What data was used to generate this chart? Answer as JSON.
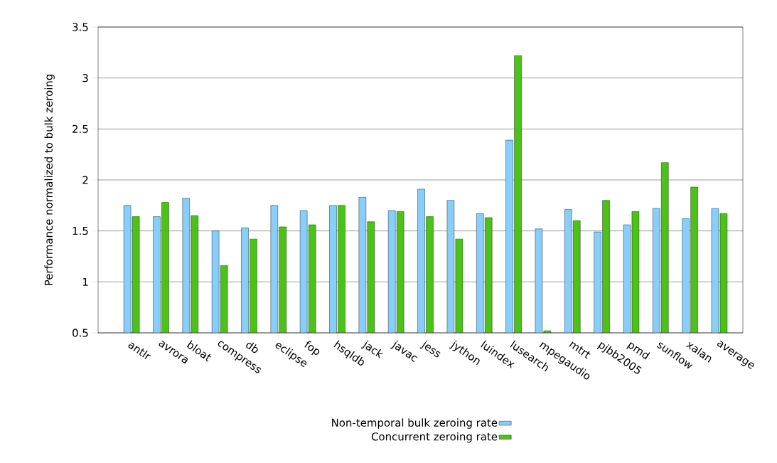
{
  "chart_data": {
    "type": "bar",
    "ylabel": "Performance normalized to bulk zeroing",
    "categories": [
      "antlr",
      "avrora",
      "bloat",
      "compress",
      "db",
      "eclipse",
      "fop",
      "hsqldb",
      "jack",
      "javac",
      "jess",
      "jython",
      "luindex",
      "lusearch",
      "mpegaudio",
      "mtrt",
      "pjbb2005",
      "pmd",
      "sunflow",
      "xalan",
      "average"
    ],
    "series": [
      {
        "name": "Non-temporal bulk zeroing rate",
        "color": "#87cefa",
        "values": [
          1.75,
          1.64,
          1.82,
          1.5,
          1.53,
          1.75,
          1.7,
          1.75,
          1.83,
          1.7,
          1.91,
          1.8,
          1.67,
          2.39,
          1.52,
          1.71,
          1.49,
          1.56,
          1.72,
          1.62,
          1.72
        ]
      },
      {
        "name": "Concurrent zeroing rate",
        "color": "#4cc219",
        "values": [
          1.64,
          1.78,
          1.65,
          1.16,
          1.42,
          1.54,
          1.56,
          1.75,
          1.59,
          1.69,
          1.64,
          1.42,
          1.63,
          3.22,
          0.52,
          1.6,
          1.8,
          1.69,
          2.17,
          1.93,
          1.67
        ]
      }
    ],
    "ylim": [
      0.5,
      3.5
    ],
    "yticks": [
      0.5,
      1,
      1.5,
      2,
      2.5,
      3,
      3.5
    ],
    "grid": "y",
    "legend": "bottom"
  }
}
